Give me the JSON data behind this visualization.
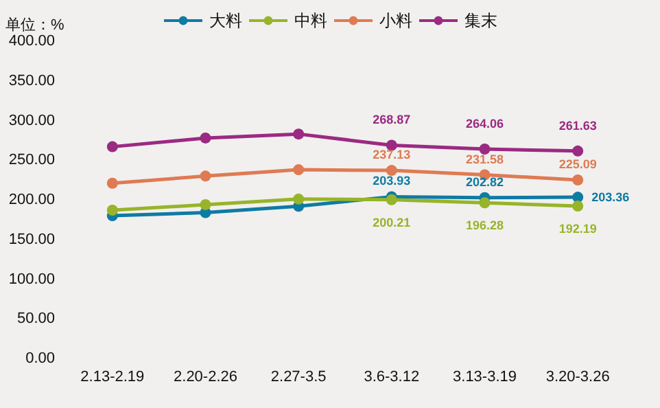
{
  "chart_data": {
    "type": "line",
    "ylabel": "单位：%",
    "categories": [
      "2.13-2.19",
      "2.20-2.26",
      "2.27-3.5",
      "3.6-3.12",
      "3.13-3.19",
      "3.20-3.26"
    ],
    "series": [
      {
        "name": "大料",
        "color": "#0e7ba3",
        "values": [
          180,
          184,
          192,
          203.93,
          202.82,
          203.36
        ],
        "value_labels": [
          null,
          null,
          null,
          "203.93",
          "202.82",
          "203.36"
        ]
      },
      {
        "name": "中料",
        "color": "#97b42a",
        "values": [
          187,
          194,
          201,
          200.21,
          196.28,
          192.19
        ],
        "value_labels": [
          null,
          null,
          null,
          "200.21",
          "196.28",
          "192.19"
        ]
      },
      {
        "name": "小料",
        "color": "#df7a53",
        "values": [
          221,
          230,
          238,
          237.13,
          231.58,
          225.09
        ],
        "value_labels": [
          null,
          null,
          null,
          "237.13",
          "231.58",
          "225.09"
        ]
      },
      {
        "name": "集末",
        "color": "#9b2a83",
        "values": [
          267,
          278,
          283,
          268.87,
          264.06,
          261.63
        ],
        "value_labels": [
          null,
          null,
          null,
          "268.87",
          "264.06",
          "261.63"
        ]
      }
    ],
    "ylim": [
      0,
      400
    ],
    "yticks": [
      {
        "value": 0,
        "label": "0.00"
      },
      {
        "value": 50,
        "label": "50.00"
      },
      {
        "value": 100,
        "label": "100.00"
      },
      {
        "value": 150,
        "label": "150.00"
      },
      {
        "value": 200,
        "label": "200.00"
      },
      {
        "value": 250,
        "label": "250.00"
      },
      {
        "value": 300,
        "label": "300.00"
      },
      {
        "value": 350,
        "label": "350.00"
      },
      {
        "value": 400,
        "label": "400.00"
      }
    ],
    "legend": "top",
    "marker": "circle",
    "line_style": "solid",
    "grid": false
  }
}
